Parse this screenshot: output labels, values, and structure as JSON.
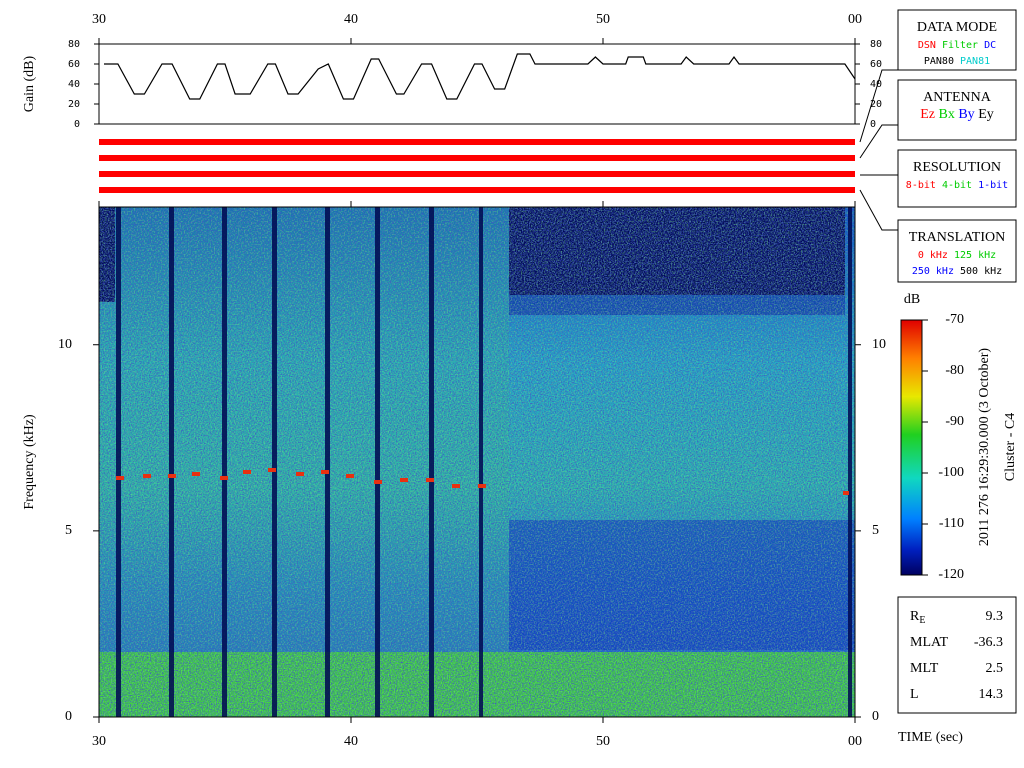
{
  "chart_data": [
    {
      "type": "line",
      "y_label": "Gain (dB)",
      "color": "#000000",
      "x": [
        30.2,
        30.75,
        31.4,
        31.8,
        32.5,
        32.9,
        33.6,
        34.0,
        34.7,
        35.0,
        35.4,
        36.0,
        36.7,
        37.0,
        37.5,
        37.9,
        38.7,
        39.1,
        39.7,
        40.1,
        40.8,
        41.1,
        41.8,
        42.1,
        42.8,
        43.2,
        43.8,
        44.2,
        44.9,
        45.2,
        45.7,
        46.1,
        46.6,
        47.1,
        47.3,
        49.4,
        49.7,
        50.0,
        50.9,
        51.0,
        51.6,
        51.7,
        53.1,
        53.3,
        53.6,
        55.0,
        55.2,
        55.4,
        59.6,
        60.0
      ],
      "values": [
        60,
        60,
        30,
        30,
        60,
        60,
        25,
        25,
        60,
        60,
        30,
        30,
        60,
        60,
        30,
        30,
        55,
        60,
        25,
        25,
        65,
        65,
        30,
        30,
        60,
        60,
        25,
        25,
        60,
        60,
        35,
        35,
        70,
        70,
        60,
        60,
        67,
        60,
        60,
        67,
        67,
        60,
        60,
        67,
        60,
        60,
        67,
        60,
        60,
        45
      ],
      "xlim": [
        30,
        60
      ],
      "xticks": [
        30,
        40,
        50,
        {
          "value": 60,
          "label": "00"
        }
      ],
      "ylim": [
        0,
        80
      ],
      "yticks": [
        0,
        20,
        40,
        60,
        80
      ]
    },
    {
      "type": "spectrogram",
      "y_label": "Frequency (kHz)",
      "x_label": "TIME (sec)",
      "xlim": [
        30,
        60
      ],
      "xticks": [
        30,
        40,
        50,
        {
          "value": 60,
          "label": "00"
        }
      ],
      "ylim": [
        0,
        13.7
      ],
      "yticks": [
        0,
        5,
        10
      ],
      "colorbar": {
        "label": "dB",
        "lim": [
          -120,
          -70
        ],
        "ticks": [
          -70,
          -80,
          -90,
          -100,
          -110,
          -120
        ]
      }
    }
  ],
  "panels": [
    {
      "title": "DATA MODE",
      "rows": [
        [
          {
            "text": "DSN",
            "color": "#ff0000"
          },
          {
            "text": "Filter",
            "color": "#00cc00"
          },
          {
            "text": "DC",
            "color": "#0000ff"
          }
        ],
        [
          {
            "text": "PAN80",
            "color": "#000000"
          },
          {
            "text": "PAN81",
            "color": "#00cccc"
          }
        ]
      ]
    },
    {
      "title": "ANTENNA",
      "rows": [
        [
          {
            "text": "Ez",
            "color": "#ff0000"
          },
          {
            "text": "Bx",
            "color": "#00cc00"
          },
          {
            "text": "By",
            "color": "#0000ff"
          },
          {
            "text": "Ey",
            "color": "#000000"
          }
        ]
      ]
    },
    {
      "title": "RESOLUTION",
      "rows": [
        [
          {
            "text": "8-bit",
            "color": "#ff0000"
          },
          {
            "text": "4-bit",
            "color": "#00cc00"
          },
          {
            "text": "1-bit",
            "color": "#0000ff"
          }
        ]
      ]
    },
    {
      "title": "TRANSLATION",
      "rows": [
        [
          {
            "text": "0 kHz",
            "color": "#ff0000"
          },
          {
            "text": "125 kHz",
            "color": "#00cc00"
          }
        ],
        [
          {
            "text": "250 kHz",
            "color": "#0000ff"
          },
          {
            "text": "500 kHz",
            "color": "#000000"
          }
        ]
      ]
    }
  ],
  "timestamp": "2011 276 16:29:30.000 (3 October)",
  "spacecraft": "Cluster - C4",
  "info": [
    {
      "label": "R",
      "sub": "E",
      "value": 9.3
    },
    {
      "label": "MLAT",
      "value": -36.3
    },
    {
      "label": "MLT",
      "value": 2.5
    },
    {
      "label": "L",
      "value": 14.3
    }
  ]
}
